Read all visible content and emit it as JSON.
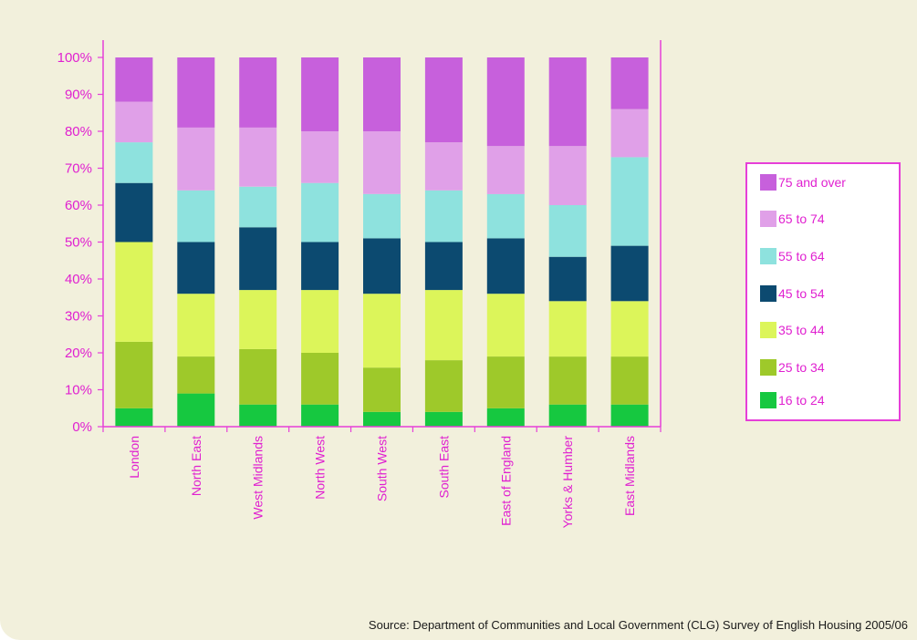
{
  "chart_data": {
    "type": "bar",
    "stacked": true,
    "categories": [
      "London",
      "North East",
      "West Midlands",
      "North West",
      "South West",
      "South East",
      "East of England",
      "Yorks & Humber",
      "East Midlands"
    ],
    "series": [
      {
        "name": "16 to 24",
        "color": "#16c840",
        "values": [
          5,
          9,
          6,
          6,
          4,
          4,
          5,
          6,
          6
        ]
      },
      {
        "name": "25 to 34",
        "color": "#9ec92a",
        "values": [
          18,
          10,
          15,
          14,
          12,
          14,
          14,
          13,
          13
        ]
      },
      {
        "name": "35 to 44",
        "color": "#dcf55a",
        "values": [
          27,
          17,
          16,
          17,
          20,
          19,
          17,
          15,
          15
        ]
      },
      {
        "name": "45 to 54",
        "color": "#0c4a70",
        "values": [
          16,
          14,
          17,
          13,
          15,
          13,
          15,
          12,
          15
        ]
      },
      {
        "name": "55 to 64",
        "color": "#8ee2de",
        "values": [
          11,
          14,
          11,
          16,
          12,
          14,
          12,
          14,
          24
        ]
      },
      {
        "name": "65 to 74",
        "color": "#e0a0e8",
        "values": [
          11,
          17,
          16,
          14,
          17,
          13,
          13,
          16,
          13
        ]
      },
      {
        "name": "75 and over",
        "color": "#c760dc",
        "values": [
          12,
          19,
          19,
          20,
          20,
          23,
          24,
          24,
          14
        ]
      }
    ],
    "ylim": [
      0,
      100
    ],
    "yticks": [
      "0%",
      "10%",
      "20%",
      "30%",
      "40%",
      "50%",
      "60%",
      "70%",
      "80%",
      "90%",
      "100%"
    ],
    "legend_position": "right",
    "axis_color": "#e63fd8"
  },
  "source": "Source: Department of Communities and Local Government (CLG) Survey of English Housing 2005/06"
}
